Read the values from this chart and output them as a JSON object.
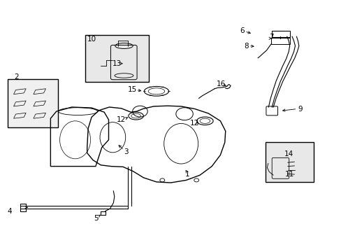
{
  "bg_color": "#ffffff",
  "line_color": "#000000",
  "label_color": "#000000",
  "fig_width": 4.89,
  "fig_height": 3.6,
  "dpi": 100
}
